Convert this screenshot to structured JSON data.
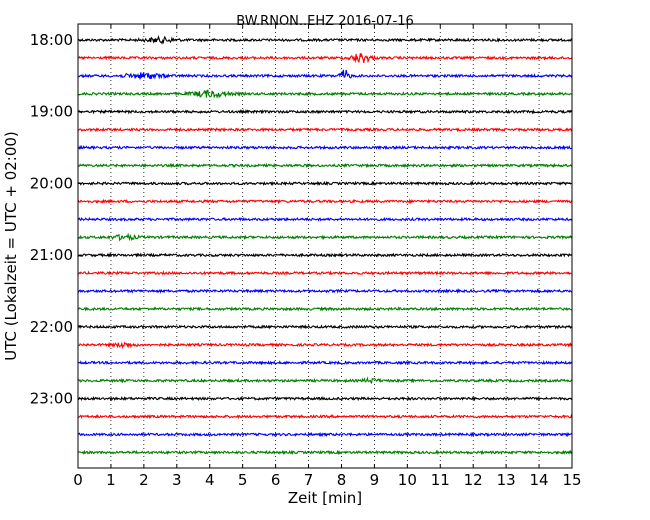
{
  "chart_data": {
    "type": "line",
    "title": "BW.RNON..EHZ 2016-07-16",
    "xlabel": "Zeit  [min]",
    "ylabel": "UTC (Lokalzeit = UTC + 02:00)",
    "xlim": [
      0,
      15
    ],
    "x_ticks": [
      "0",
      "1",
      "2",
      "3",
      "4",
      "5",
      "6",
      "7",
      "8",
      "9",
      "10",
      "11",
      "12",
      "13",
      "14",
      "15"
    ],
    "y_tick_labels": [
      "18:00",
      "19:00",
      "20:00",
      "21:00",
      "22:00",
      "23:00"
    ],
    "grid": "vertical dotted at each minute",
    "row_colors": [
      "#000000",
      "#ff0000",
      "#0000ff",
      "#008000"
    ],
    "rows": [
      {
        "start": "18:00",
        "color": "#000000",
        "bursts": [
          {
            "at_min": 2.5,
            "amp": 2.2,
            "width_min": 1.2
          }
        ]
      },
      {
        "start": "18:15",
        "color": "#ff0000",
        "bursts": [
          {
            "at_min": 8.6,
            "amp": 4.5,
            "width_min": 0.8
          }
        ]
      },
      {
        "start": "18:30",
        "color": "#0000ff",
        "bursts": [
          {
            "at_min": 2.0,
            "amp": 2.5,
            "width_min": 1.5
          },
          {
            "at_min": 8.1,
            "amp": 5.5,
            "width_min": 0.4
          }
        ]
      },
      {
        "start": "18:45",
        "color": "#008000",
        "bursts": [
          {
            "at_min": 4.0,
            "amp": 3.0,
            "width_min": 1.4
          }
        ]
      },
      {
        "start": "19:00",
        "color": "#000000",
        "bursts": []
      },
      {
        "start": "19:15",
        "color": "#ff0000",
        "bursts": []
      },
      {
        "start": "19:30",
        "color": "#0000ff",
        "bursts": []
      },
      {
        "start": "19:45",
        "color": "#008000",
        "bursts": []
      },
      {
        "start": "20:00",
        "color": "#000000",
        "bursts": []
      },
      {
        "start": "20:15",
        "color": "#ff0000",
        "bursts": []
      },
      {
        "start": "20:30",
        "color": "#0000ff",
        "bursts": []
      },
      {
        "start": "20:45",
        "color": "#008000",
        "bursts": [
          {
            "at_min": 1.4,
            "amp": 2.0,
            "width_min": 1.0
          }
        ]
      },
      {
        "start": "21:00",
        "color": "#000000",
        "bursts": []
      },
      {
        "start": "21:15",
        "color": "#ff0000",
        "bursts": []
      },
      {
        "start": "21:30",
        "color": "#0000ff",
        "bursts": []
      },
      {
        "start": "21:45",
        "color": "#008000",
        "bursts": []
      },
      {
        "start": "22:00",
        "color": "#000000",
        "bursts": []
      },
      {
        "start": "22:15",
        "color": "#ff0000",
        "bursts": [
          {
            "at_min": 1.4,
            "amp": 1.8,
            "width_min": 0.8
          }
        ]
      },
      {
        "start": "22:30",
        "color": "#0000ff",
        "bursts": []
      },
      {
        "start": "22:45",
        "color": "#008000",
        "bursts": [
          {
            "at_min": 8.9,
            "amp": 1.8,
            "width_min": 0.6
          }
        ]
      },
      {
        "start": "23:00",
        "color": "#000000",
        "bursts": []
      },
      {
        "start": "23:15",
        "color": "#ff0000",
        "bursts": []
      },
      {
        "start": "23:30",
        "color": "#0000ff",
        "bursts": []
      },
      {
        "start": "23:45",
        "color": "#008000",
        "bursts": []
      }
    ]
  }
}
